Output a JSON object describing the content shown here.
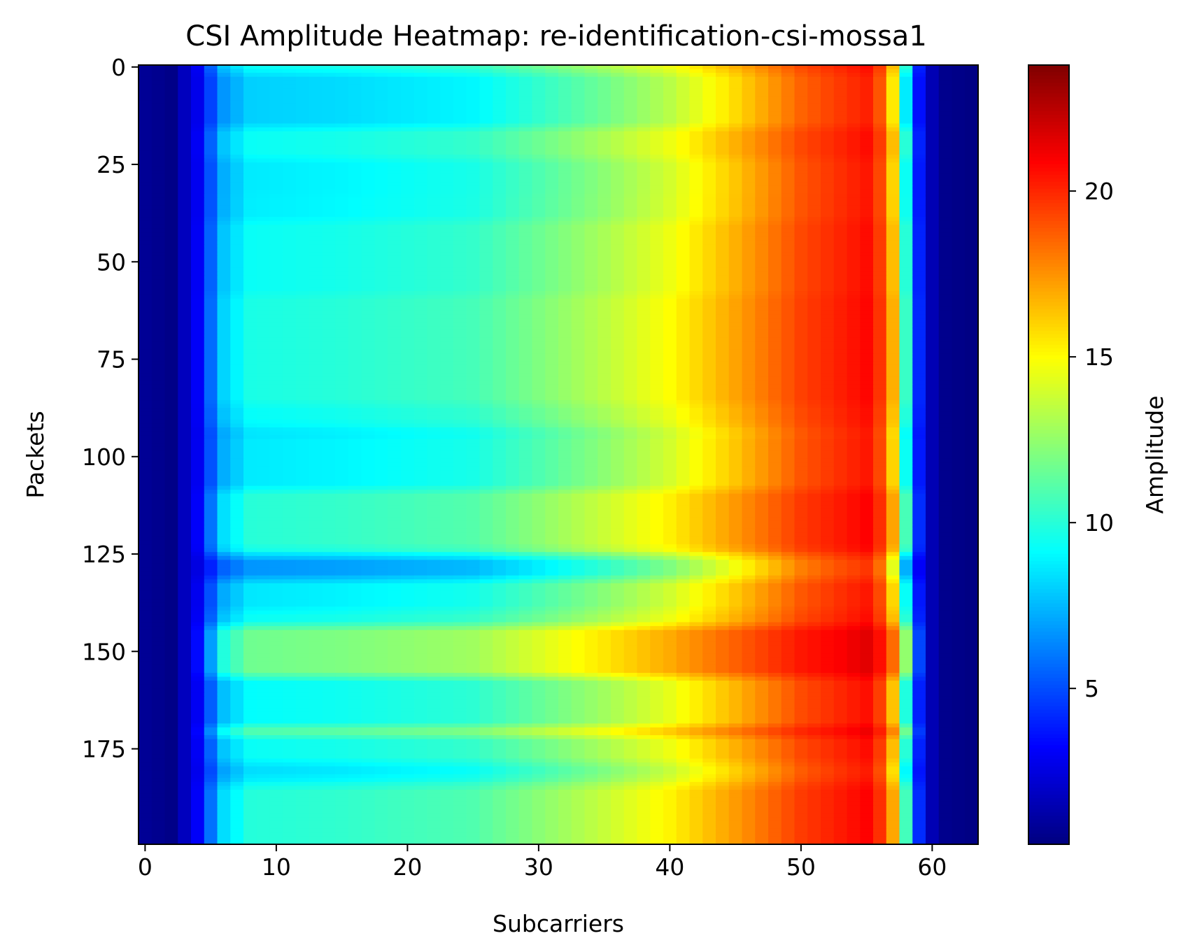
{
  "chart_data": {
    "type": "heatmap",
    "title": "CSI Amplitude Heatmap: re-identification-csi-mossa1",
    "xlabel": "Subcarriers",
    "ylabel": "Packets",
    "colorbar_label": "Amplitude",
    "colormap": "jet",
    "x_range": [
      0,
      63
    ],
    "y_range": [
      0,
      199
    ],
    "y_inverted": true,
    "value_range": [
      0.3,
      23.8
    ],
    "x_ticks": [
      "0",
      "10",
      "20",
      "30",
      "40",
      "50",
      "60"
    ],
    "y_ticks": [
      "0",
      "25",
      "50",
      "75",
      "100",
      "125",
      "150",
      "175"
    ],
    "colorbar_ticks": [
      "5",
      "10",
      "15",
      "20"
    ],
    "grid": false,
    "column_profile": [
      {
        "subcarrier": 0,
        "amplitude": 0.8
      },
      {
        "subcarrier": 2,
        "amplitude": 0.5
      },
      {
        "subcarrier": 4,
        "amplitude": 3.0
      },
      {
        "subcarrier": 5,
        "amplitude": 5.5
      },
      {
        "subcarrier": 6,
        "amplitude": 7.8
      },
      {
        "subcarrier": 8,
        "amplitude": 9.3
      },
      {
        "subcarrier": 15,
        "amplitude": 9.6
      },
      {
        "subcarrier": 25,
        "amplitude": 10.3
      },
      {
        "subcarrier": 30,
        "amplitude": 11.6
      },
      {
        "subcarrier": 35,
        "amplitude": 13.0
      },
      {
        "subcarrier": 40,
        "amplitude": 14.6
      },
      {
        "subcarrier": 45,
        "amplitude": 16.8
      },
      {
        "subcarrier": 50,
        "amplitude": 19.2
      },
      {
        "subcarrier": 55,
        "amplitude": 20.6
      },
      {
        "subcarrier": 56,
        "amplitude": 19.5
      },
      {
        "subcarrier": 57,
        "amplitude": 16.5
      },
      {
        "subcarrier": 58,
        "amplitude": 10.0
      },
      {
        "subcarrier": 59,
        "amplitude": 4.0
      },
      {
        "subcarrier": 60,
        "amplitude": 1.5
      },
      {
        "subcarrier": 61,
        "amplitude": 0.6
      },
      {
        "subcarrier": 63,
        "amplitude": 0.4
      }
    ],
    "row_bands": [
      {
        "packets": [
          3,
          14
        ],
        "delta": -1.6
      },
      {
        "packets": [
          25,
          31
        ],
        "delta": -0.8
      },
      {
        "packets": [
          34,
          38
        ],
        "delta": -0.7
      },
      {
        "packets": [
          60,
          90
        ],
        "delta": 0.5
      },
      {
        "packets": [
          88,
          93
        ],
        "delta": -0.6
      },
      {
        "packets": [
          95,
          107
        ],
        "delta": -0.8
      },
      {
        "packets": [
          110,
          122
        ],
        "delta": 0.9
      },
      {
        "packets": [
          127,
          138
        ],
        "delta": -3.3
      },
      {
        "packets": [
          133,
          138
        ],
        "delta": 2.4
      },
      {
        "packets": [
          145,
          170
        ],
        "delta": 3.0
      },
      {
        "packets": [
          158,
          168
        ],
        "delta": -3.2
      },
      {
        "packets": [
          180,
          183
        ],
        "delta": -1.2
      },
      {
        "packets": [
          184,
          199
        ],
        "delta": 0.8
      }
    ]
  }
}
